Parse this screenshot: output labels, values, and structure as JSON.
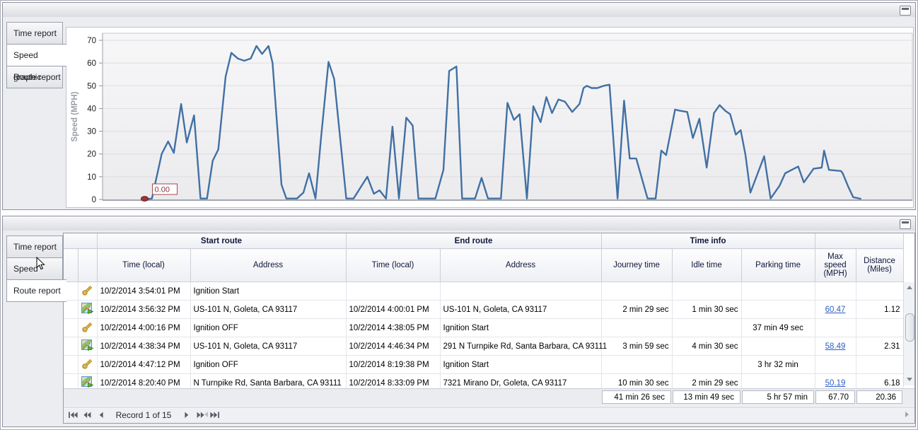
{
  "top_panel": {
    "caption": "",
    "tabs": [
      {
        "label": "Time report",
        "selected": false
      },
      {
        "label": "Speed graphic",
        "selected": true
      },
      {
        "label": "Route report",
        "selected": false
      }
    ]
  },
  "chart_data": {
    "type": "line",
    "title": "",
    "xlabel": "",
    "ylabel": "Speed (MPH)",
    "ylim": [
      0,
      73
    ],
    "yticks": [
      0,
      10,
      20,
      30,
      40,
      50,
      60,
      70
    ],
    "grid": "horizontal",
    "legend": "none",
    "line_color": "#4170a3",
    "annotation": {
      "label": "0.00",
      "color": "#8d3541",
      "marker_color": "#a23434"
    },
    "series": [
      {
        "name": "Speed (MPH)",
        "points_xfrac_mph": [
          [
            0.052,
            0
          ],
          [
            0.061,
            0.4
          ],
          [
            0.073,
            20
          ],
          [
            0.081,
            25.5
          ],
          [
            0.088,
            20.5
          ],
          [
            0.097,
            42
          ],
          [
            0.104,
            25
          ],
          [
            0.113,
            37
          ],
          [
            0.121,
            0.4
          ],
          [
            0.129,
            0.4
          ],
          [
            0.136,
            17
          ],
          [
            0.143,
            22
          ],
          [
            0.152,
            54
          ],
          [
            0.159,
            64.5
          ],
          [
            0.167,
            62
          ],
          [
            0.175,
            61
          ],
          [
            0.183,
            62
          ],
          [
            0.19,
            67.5
          ],
          [
            0.197,
            64
          ],
          [
            0.205,
            67.5
          ],
          [
            0.21,
            60
          ],
          [
            0.221,
            6.5
          ],
          [
            0.227,
            0.4
          ],
          [
            0.24,
            0.4
          ],
          [
            0.248,
            3
          ],
          [
            0.255,
            11.5
          ],
          [
            0.263,
            0.4
          ],
          [
            0.27,
            28
          ],
          [
            0.279,
            60.5
          ],
          [
            0.286,
            53
          ],
          [
            0.301,
            0.4
          ],
          [
            0.31,
            0.4
          ],
          [
            0.327,
            10
          ],
          [
            0.335,
            2.5
          ],
          [
            0.342,
            4
          ],
          [
            0.35,
            0.4
          ],
          [
            0.358,
            32
          ],
          [
            0.366,
            0.4
          ],
          [
            0.375,
            36
          ],
          [
            0.383,
            32.5
          ],
          [
            0.39,
            0.4
          ],
          [
            0.411,
            0.4
          ],
          [
            0.421,
            13
          ],
          [
            0.428,
            56.5
          ],
          [
            0.437,
            58.5
          ],
          [
            0.444,
            0.4
          ],
          [
            0.46,
            0.4
          ],
          [
            0.468,
            9.5
          ],
          [
            0.476,
            0.4
          ],
          [
            0.492,
            0.4
          ],
          [
            0.5,
            42.5
          ],
          [
            0.508,
            35
          ],
          [
            0.515,
            37.5
          ],
          [
            0.524,
            0.4
          ],
          [
            0.532,
            41
          ],
          [
            0.541,
            34
          ],
          [
            0.548,
            45
          ],
          [
            0.555,
            38
          ],
          [
            0.563,
            44
          ],
          [
            0.571,
            43
          ],
          [
            0.58,
            38.5
          ],
          [
            0.589,
            42
          ],
          [
            0.594,
            49
          ],
          [
            0.598,
            50
          ],
          [
            0.604,
            49
          ],
          [
            0.611,
            49
          ],
          [
            0.619,
            50
          ],
          [
            0.626,
            50.5
          ],
          [
            0.636,
            0.4
          ],
          [
            0.644,
            43.5
          ],
          [
            0.651,
            18
          ],
          [
            0.659,
            18
          ],
          [
            0.673,
            0.4
          ],
          [
            0.683,
            0.4
          ],
          [
            0.69,
            21.5
          ],
          [
            0.696,
            19.5
          ],
          [
            0.707,
            39.5
          ],
          [
            0.713,
            39
          ],
          [
            0.722,
            38.5
          ],
          [
            0.729,
            27
          ],
          [
            0.737,
            35.5
          ],
          [
            0.746,
            14
          ],
          [
            0.755,
            38
          ],
          [
            0.762,
            41.5
          ],
          [
            0.769,
            39
          ],
          [
            0.775,
            37.5
          ],
          [
            0.782,
            28.5
          ],
          [
            0.788,
            30.5
          ],
          [
            0.794,
            19.5
          ],
          [
            0.8,
            3
          ],
          [
            0.817,
            19
          ],
          [
            0.825,
            0.4
          ],
          [
            0.836,
            6
          ],
          [
            0.843,
            11.5
          ],
          [
            0.851,
            13
          ],
          [
            0.859,
            14.5
          ],
          [
            0.866,
            7.5
          ],
          [
            0.871,
            10
          ],
          [
            0.878,
            13.5
          ],
          [
            0.888,
            14
          ],
          [
            0.891,
            21.5
          ],
          [
            0.897,
            13
          ],
          [
            0.912,
            12.5
          ],
          [
            0.914,
            11.5
          ],
          [
            0.921,
            5.5
          ],
          [
            0.927,
            1
          ],
          [
            0.936,
            0.3
          ]
        ]
      }
    ]
  },
  "bottom_panel": {
    "caption": "",
    "tabs": [
      {
        "label": "Time report",
        "selected": false
      },
      {
        "label": "Speed graphic",
        "selected": false
      },
      {
        "label": "Route report",
        "selected": true
      }
    ],
    "grid": {
      "column_groups": [
        "Start route",
        "End route",
        "Time info"
      ],
      "columns": [
        "Time (local)",
        "Address",
        "Time (local)",
        "Address",
        "Journey time",
        "Idle time",
        "Parking time",
        "Max speed (MPH)",
        "Distance (Miles)"
      ],
      "rows": [
        {
          "icon": "key",
          "start_time": "10/2/2014 3:54:01 PM",
          "start_address": "Ignition Start",
          "end_time": "",
          "end_address": "",
          "journey_time": "",
          "idle_time": "",
          "parking_time": "",
          "max_speed": "",
          "max_speed_is_link": false,
          "distance": ""
        },
        {
          "icon": "route",
          "start_time": "10/2/2014 3:56:32 PM",
          "start_address": "US-101 N, Goleta, CA 93117",
          "end_time": "10/2/2014 4:00:01 PM",
          "end_address": "US-101 N, Goleta, CA 93117",
          "journey_time": "2 min 29 sec",
          "idle_time": "1 min 30 sec",
          "parking_time": "",
          "max_speed": "60.47",
          "max_speed_is_link": true,
          "distance": "1.12"
        },
        {
          "icon": "key",
          "start_time": "10/2/2014 4:00:16 PM",
          "start_address": "Ignition OFF",
          "end_time": "10/2/2014 4:38:05 PM",
          "end_address": "Ignition Start",
          "journey_time": "",
          "idle_time": "",
          "parking_time": "37 min 49 sec",
          "max_speed": "",
          "max_speed_is_link": false,
          "distance": ""
        },
        {
          "icon": "route",
          "start_time": "10/2/2014 4:38:34 PM",
          "start_address": "US-101 N, Goleta, CA 93117",
          "end_time": "10/2/2014 4:46:34 PM",
          "end_address": "291 N Turnpike Rd, Santa Barbara, CA 93111",
          "journey_time": "3 min 59 sec",
          "idle_time": "4 min 30 sec",
          "parking_time": "",
          "max_speed": "58.49",
          "max_speed_is_link": true,
          "distance": "2.31"
        },
        {
          "icon": "key",
          "start_time": "10/2/2014 4:47:12 PM",
          "start_address": "Ignition OFF",
          "end_time": "10/2/2014 8:19:38 PM",
          "end_address": "Ignition Start",
          "journey_time": "",
          "idle_time": "",
          "parking_time": "3 hr 32 min",
          "max_speed": "",
          "max_speed_is_link": false,
          "distance": ""
        },
        {
          "icon": "route",
          "start_time": "10/2/2014 8:20:40 PM",
          "start_address": "N Turnpike Rd, Santa Barbara, CA 93111",
          "end_time": "10/2/2014 8:33:09 PM",
          "end_address": "7321 Mirano Dr, Goleta, CA 93117",
          "journey_time": "10 min 30 sec",
          "idle_time": "2 min 29 sec",
          "parking_time": "",
          "max_speed": "50.19",
          "max_speed_is_link": true,
          "distance": "6.18"
        }
      ],
      "summary": {
        "journey_time": "41 min 26 sec",
        "idle_time": "13 min 49 sec",
        "parking_time": "5 hr 57 min",
        "max_speed": "67.70",
        "distance": "20.36"
      },
      "navigator": {
        "record_label": "Record 1 of 15"
      }
    }
  }
}
